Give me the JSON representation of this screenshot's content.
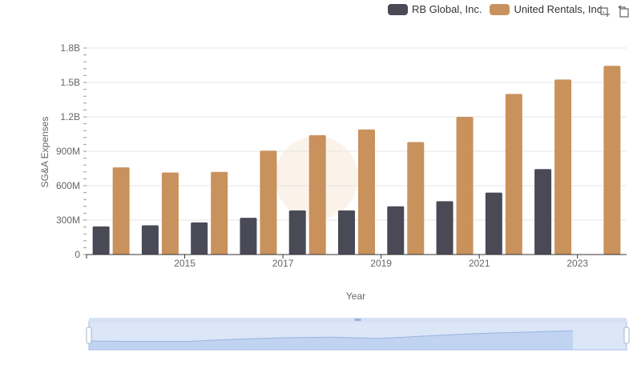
{
  "legend": {
    "items": [
      {
        "label": "RB Global, Inc.",
        "color": "#4a4a57"
      },
      {
        "label": "United Rentals, Inc.",
        "color": "#c9915c"
      }
    ]
  },
  "toolbox": {
    "icons": [
      "zoom-icon",
      "restore-icon"
    ]
  },
  "chart_data": {
    "type": "bar",
    "categories": [
      "2014",
      "2015",
      "2016",
      "2017",
      "2018",
      "2019",
      "2020",
      "2021",
      "2022",
      "2023",
      "2024"
    ],
    "x_tick_labels": [
      "2015",
      "2017",
      "2019",
      "2021",
      "2023"
    ],
    "series": [
      {
        "name": "RB Global, Inc.",
        "color": "#4a4a57",
        "values": [
          245,
          255,
          280,
          320,
          385,
          385,
          420,
          465,
          540,
          745,
          null
        ]
      },
      {
        "name": "United Rentals, Inc.",
        "color": "#c9915c",
        "values": [
          760,
          715,
          720,
          905,
          1040,
          1090,
          980,
          1200,
          1400,
          1525,
          1645
        ]
      }
    ],
    "unit": "millions",
    "xlabel": "Year",
    "ylabel": "SG&A Expenses",
    "ylim": [
      0,
      1800
    ],
    "y_ticks": [
      0,
      300,
      600,
      900,
      1200,
      1500,
      1800
    ],
    "y_tick_labels": [
      "0",
      "300M",
      "600M",
      "900M",
      "1.2B",
      "1.5B",
      "1.8B"
    ],
    "grid": true,
    "legend_position": "top-right",
    "data_zoom": true
  }
}
